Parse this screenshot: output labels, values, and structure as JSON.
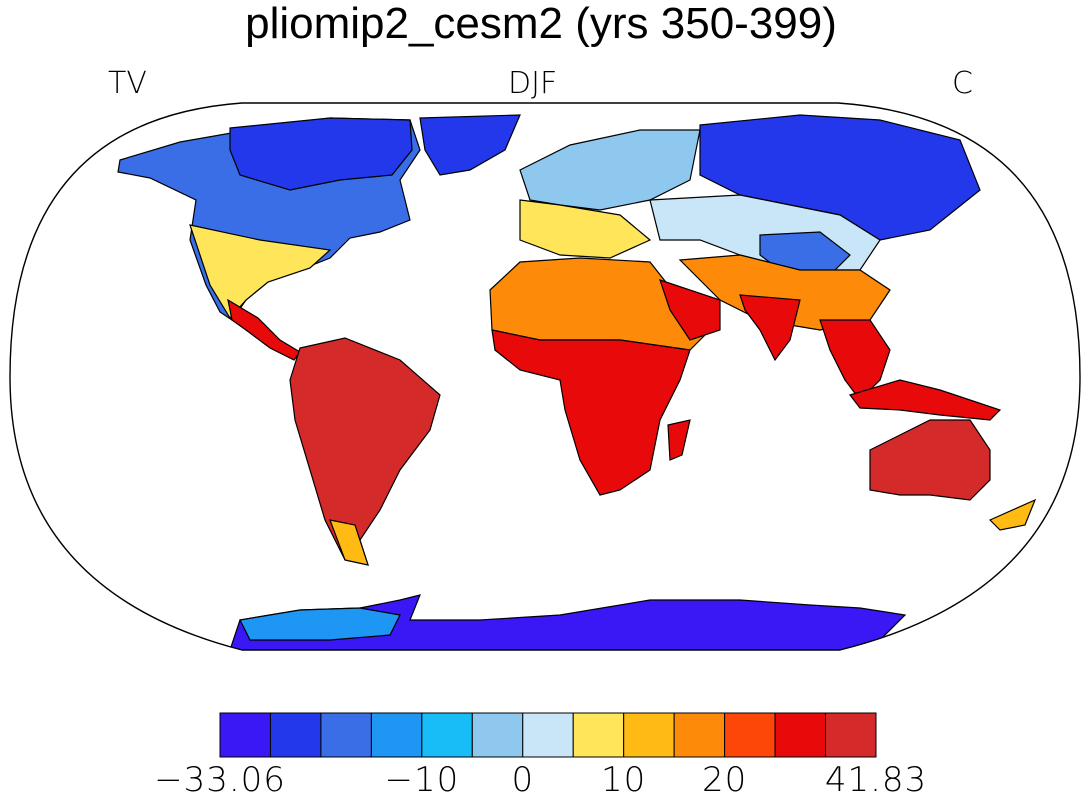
{
  "title": "pliomip2_cesm2 (yrs 350-399)",
  "left_label": "TV",
  "center_label": "DJF",
  "right_label": "C",
  "colorbar": {
    "colors": [
      "#3a17f5",
      "#2238ea",
      "#3a6ee6",
      "#1e96f4",
      "#18bdf7",
      "#8ec8ee",
      "#c9e5f8",
      "#ffe55a",
      "#ffbb14",
      "#fd8a08",
      "#fd4708",
      "#e80a0a",
      "#d52a2a"
    ],
    "labels": [
      {
        "text": "−33.06",
        "index": 0
      },
      {
        "text": "−10",
        "index": 4
      },
      {
        "text": "0",
        "index": 6
      },
      {
        "text": "10",
        "index": 8
      },
      {
        "text": "20",
        "index": 10
      },
      {
        "text": "41.83",
        "index": 13
      }
    ]
  }
}
